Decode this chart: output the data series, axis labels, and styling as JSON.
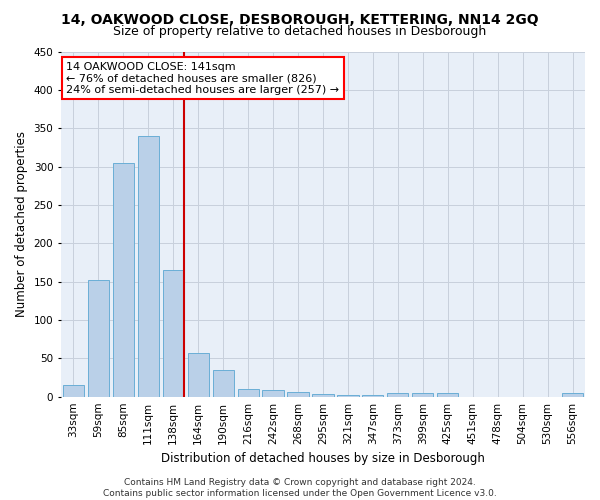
{
  "title": "14, OAKWOOD CLOSE, DESBOROUGH, KETTERING, NN14 2GQ",
  "subtitle": "Size of property relative to detached houses in Desborough",
  "xlabel": "Distribution of detached houses by size in Desborough",
  "ylabel": "Number of detached properties",
  "bar_color": "#bad0e8",
  "bar_edge_color": "#6aaed6",
  "background_color": "#ffffff",
  "axes_bg_color": "#e8eff8",
  "grid_color": "#c8d0dc",
  "annotation_text": "14 OAKWOOD CLOSE: 141sqm\n← 76% of detached houses are smaller (826)\n24% of semi-detached houses are larger (257) →",
  "vline_color": "#cc0000",
  "vline_x_idx": 4,
  "categories": [
    "33sqm",
    "59sqm",
    "85sqm",
    "111sqm",
    "138sqm",
    "164sqm",
    "190sqm",
    "216sqm",
    "242sqm",
    "268sqm",
    "295sqm",
    "321sqm",
    "347sqm",
    "373sqm",
    "399sqm",
    "425sqm",
    "451sqm",
    "478sqm",
    "504sqm",
    "530sqm",
    "556sqm"
  ],
  "values": [
    15,
    152,
    305,
    340,
    165,
    57,
    35,
    10,
    9,
    6,
    3,
    2,
    2,
    5,
    5,
    5,
    0,
    0,
    0,
    0,
    5
  ],
  "ylim": [
    0,
    450
  ],
  "yticks": [
    0,
    50,
    100,
    150,
    200,
    250,
    300,
    350,
    400,
    450
  ],
  "footnote": "Contains HM Land Registry data © Crown copyright and database right 2024.\nContains public sector information licensed under the Open Government Licence v3.0.",
  "title_fontsize": 10,
  "subtitle_fontsize": 9,
  "axis_label_fontsize": 8.5,
  "tick_fontsize": 7.5,
  "annotation_fontsize": 8,
  "footnote_fontsize": 6.5
}
